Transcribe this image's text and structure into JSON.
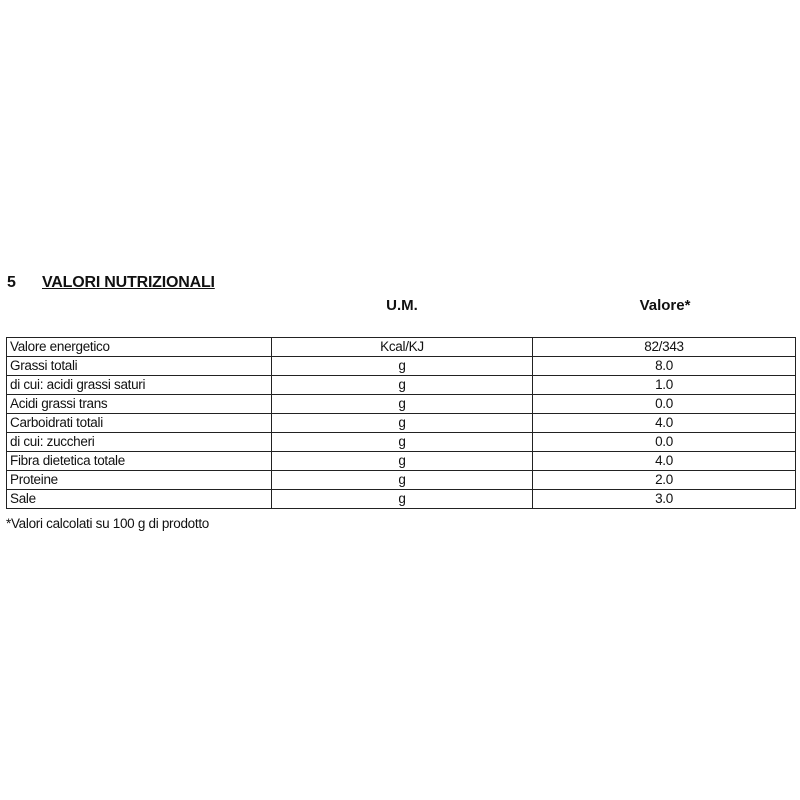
{
  "section": {
    "number": "5",
    "title": "VALORI NUTRIZIONALI"
  },
  "columns": {
    "unit": "U.M.",
    "value": "Valore*"
  },
  "rows": [
    {
      "name": "Valore energetico",
      "unit": "Kcal/KJ",
      "value": "82/343"
    },
    {
      "name": "Grassi totali",
      "unit": "g",
      "value": "8.0"
    },
    {
      "name": "di cui: acidi grassi saturi",
      "unit": "g",
      "value": "1.0"
    },
    {
      "name": "Acidi grassi trans",
      "unit": "g",
      "value": "0.0"
    },
    {
      "name": "Carboidrati totali",
      "unit": "g",
      "value": "4.0"
    },
    {
      "name": "di cui: zuccheri",
      "unit": "g",
      "value": "0.0"
    },
    {
      "name": "Fibra dietetica totale",
      "unit": "g",
      "value": "4.0"
    },
    {
      "name": "Proteine",
      "unit": "g",
      "value": "2.0"
    },
    {
      "name": "Sale",
      "unit": "g",
      "value": "3.0"
    }
  ],
  "footnote": "*Valori calcolati su 100 g di prodotto"
}
